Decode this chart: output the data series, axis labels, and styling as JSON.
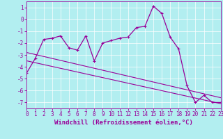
{
  "xlabel": "Windchill (Refroidissement éolien,°C)",
  "background_color": "#b2eef0",
  "line_color": "#990099",
  "xmin": 0,
  "xmax": 23,
  "ymin": -7.5,
  "ymax": 1.5,
  "yticks": [
    1,
    0,
    -1,
    -2,
    -3,
    -4,
    -5,
    -6,
    -7
  ],
  "xticks": [
    0,
    1,
    2,
    3,
    4,
    5,
    6,
    7,
    8,
    9,
    10,
    11,
    12,
    13,
    14,
    15,
    16,
    17,
    18,
    19,
    20,
    21,
    22,
    23
  ],
  "hours": [
    0,
    1,
    2,
    3,
    4,
    5,
    6,
    7,
    8,
    9,
    10,
    11,
    12,
    13,
    14,
    15,
    16,
    17,
    18,
    19,
    20,
    21,
    22,
    23
  ],
  "windchill": [
    -4.5,
    -3.3,
    -1.7,
    -1.6,
    -1.4,
    -2.4,
    -2.6,
    -1.4,
    -3.5,
    -2.0,
    -1.8,
    -1.6,
    -1.5,
    -0.7,
    -0.6,
    1.1,
    0.5,
    -1.5,
    -2.5,
    -5.6,
    -7.0,
    -6.4,
    -7.0,
    -7.0
  ],
  "trend1_x": [
    0,
    23
  ],
  "trend1_y": [
    -2.8,
    -6.6
  ],
  "trend2_x": [
    0,
    23
  ],
  "trend2_y": [
    -3.5,
    -7.1
  ],
  "grid_color": "#ffffff",
  "tick_fontsize": 5.5,
  "label_fontsize": 6.5
}
